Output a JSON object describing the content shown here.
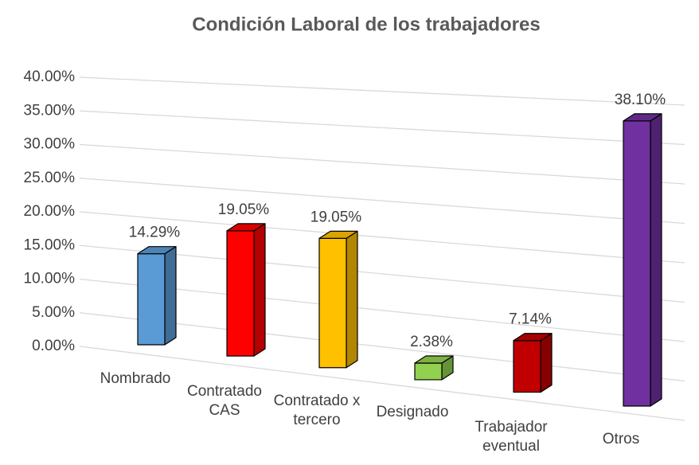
{
  "chart_data": {
    "type": "bar3d",
    "title": "Condición Laboral de los trabajadores",
    "categories": [
      "Nombrado",
      "Contratado CAS",
      "Contratado x tercero",
      "Designado",
      "Trabajador eventual",
      "Otros"
    ],
    "values": [
      14.29,
      19.05,
      19.05,
      2.38,
      7.14,
      38.1
    ],
    "value_labels": [
      "14.29%",
      "19.05%",
      "19.05%",
      "2.38%",
      "7.14%",
      "38.10%"
    ],
    "colors": [
      "#5b9bd5",
      "#ff0000",
      "#ffc000",
      "#92d050",
      "#c00000",
      "#7030a0"
    ],
    "ylim": [
      0,
      40
    ],
    "yticks": [
      {
        "value": 0,
        "label": "0.00%"
      },
      {
        "value": 5,
        "label": "5.00%"
      },
      {
        "value": 10,
        "label": "10.00%"
      },
      {
        "value": 15,
        "label": "15.00%"
      },
      {
        "value": 20,
        "label": "20.00%"
      },
      {
        "value": 25,
        "label": "25.00%"
      },
      {
        "value": 30,
        "label": "30.00%"
      },
      {
        "value": 35,
        "label": "35.00%"
      },
      {
        "value": 40,
        "label": "40.00%"
      }
    ],
    "grid": true
  }
}
